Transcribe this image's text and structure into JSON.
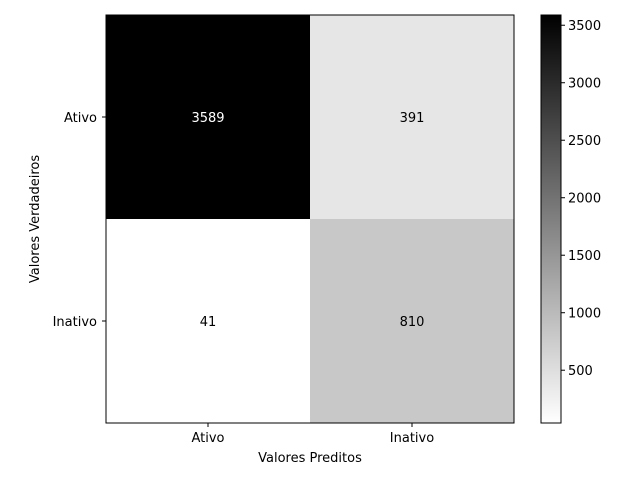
{
  "chart_data": {
    "type": "heatmap",
    "title": "",
    "xlabel": "Valores Preditos",
    "ylabel": "Valores Verdadeiros",
    "x_categories": [
      "Ativo",
      "Inativo"
    ],
    "y_categories": [
      "Ativo",
      "Inativo"
    ],
    "values": [
      [
        3589,
        391
      ],
      [
        41,
        810
      ]
    ],
    "colormap": "greys",
    "color_range": [
      41,
      3589
    ],
    "colorbar_ticks": [
      500,
      1000,
      1500,
      2000,
      2500,
      3000,
      3500
    ],
    "colorbar_tick_labels": [
      "500",
      "1000",
      "1500",
      "2000",
      "2500",
      "3000",
      "3500"
    ],
    "text_color_dark_cells": "#ffffff",
    "text_color_light_cells": "#000000"
  }
}
